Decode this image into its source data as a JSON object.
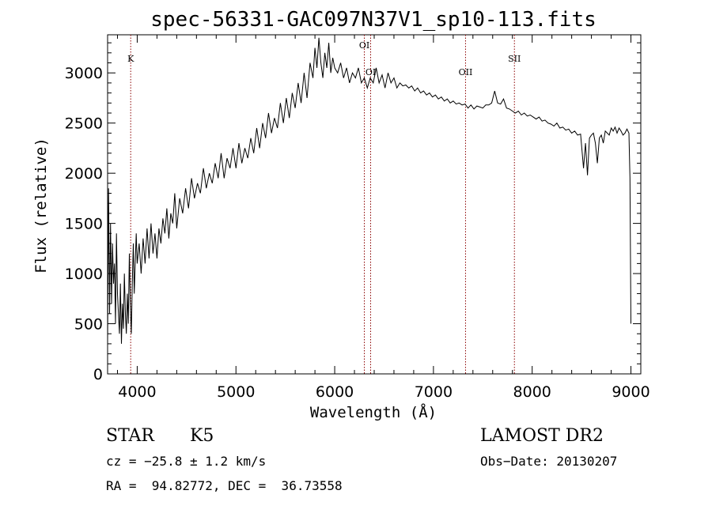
{
  "chart_data": {
    "type": "line",
    "title": "spec-56331-GAC097N37V1_sp10-113.fits",
    "xlabel": "Wavelength (Å)",
    "ylabel": "Flux (relative)",
    "xlim": [
      3700,
      9100
    ],
    "ylim": [
      0,
      3380
    ],
    "x_ticks": [
      4000,
      5000,
      6000,
      7000,
      8000,
      9000
    ],
    "y_ticks": [
      0,
      500,
      1000,
      1500,
      2000,
      2500,
      3000
    ],
    "grid": false,
    "line_color": "#000000",
    "marker_color": "#8b0000",
    "spectral_lines": [
      {
        "label": "K",
        "wavelength": 3934
      },
      {
        "label": "OI",
        "wavelength": 6300
      },
      {
        "label": "OI",
        "wavelength": 6364
      },
      {
        "label": "OII",
        "wavelength": 7325
      },
      {
        "label": "SII",
        "wavelength": 7820
      }
    ],
    "series": [
      {
        "x": [
          3700,
          3710,
          3720,
          3730,
          3740,
          3750,
          3760,
          3770,
          3780,
          3790,
          3800,
          3810,
          3820,
          3830,
          3840,
          3850,
          3860,
          3870,
          3880,
          3890,
          3900,
          3910,
          3920,
          3930,
          3940,
          3950,
          3960,
          3970,
          3980,
          3990,
          4000,
          4020,
          4040,
          4060,
          4080,
          4100,
          4120,
          4140,
          4160,
          4180,
          4200,
          4220,
          4240,
          4260,
          4280,
          4300,
          4320,
          4340,
          4360,
          4380,
          4400,
          4430,
          4460,
          4490,
          4520,
          4550,
          4580,
          4610,
          4640,
          4670,
          4700,
          4730,
          4760,
          4790,
          4820,
          4850,
          4880,
          4910,
          4940,
          4970,
          5000,
          5030,
          5060,
          5090,
          5120,
          5150,
          5180,
          5210,
          5240,
          5270,
          5300,
          5330,
          5360,
          5390,
          5420,
          5450,
          5480,
          5510,
          5540,
          5570,
          5600,
          5630,
          5660,
          5690,
          5720,
          5750,
          5780,
          5800,
          5820,
          5840,
          5860,
          5880,
          5900,
          5920,
          5940,
          5960,
          5980,
          6000,
          6030,
          6060,
          6090,
          6120,
          6150,
          6180,
          6210,
          6240,
          6270,
          6300,
          6330,
          6360,
          6390,
          6420,
          6450,
          6480,
          6510,
          6540,
          6570,
          6600,
          6630,
          6660,
          6690,
          6720,
          6750,
          6780,
          6810,
          6840,
          6870,
          6900,
          6930,
          6960,
          6990,
          7020,
          7050,
          7080,
          7110,
          7140,
          7170,
          7200,
          7230,
          7260,
          7290,
          7320,
          7350,
          7380,
          7410,
          7440,
          7470,
          7500,
          7530,
          7560,
          7590,
          7620,
          7650,
          7680,
          7710,
          7740,
          7770,
          7800,
          7830,
          7860,
          7890,
          7920,
          7950,
          7980,
          8010,
          8040,
          8070,
          8100,
          8130,
          8160,
          8190,
          8220,
          8250,
          8280,
          8310,
          8340,
          8370,
          8400,
          8430,
          8460,
          8490,
          8520,
          8540,
          8560,
          8580,
          8600,
          8620,
          8640,
          8660,
          8680,
          8700,
          8720,
          8740,
          8760,
          8780,
          8800,
          8820,
          8840,
          8860,
          8880,
          8900,
          8920,
          8940,
          8960,
          8980,
          8990,
          9000
        ],
        "y": [
          300,
          1850,
          600,
          1500,
          700,
          1300,
          900,
          1100,
          500,
          1400,
          800,
          600,
          400,
          900,
          300,
          700,
          450,
          1000,
          600,
          400,
          800,
          500,
          1200,
          700,
          400,
          900,
          1300,
          800,
          1100,
          1400,
          1100,
          1300,
          1000,
          1350,
          1100,
          1450,
          1150,
          1500,
          1200,
          1400,
          1150,
          1450,
          1300,
          1550,
          1400,
          1650,
          1350,
          1600,
          1500,
          1800,
          1450,
          1750,
          1600,
          1850,
          1650,
          1950,
          1750,
          1900,
          1800,
          2050,
          1850,
          2000,
          1900,
          2100,
          1950,
          2200,
          1950,
          2150,
          2050,
          2250,
          2050,
          2300,
          2100,
          2250,
          2150,
          2350,
          2200,
          2450,
          2250,
          2500,
          2350,
          2600,
          2400,
          2550,
          2450,
          2700,
          2500,
          2750,
          2550,
          2800,
          2650,
          2900,
          2700,
          3000,
          2750,
          3100,
          2950,
          3250,
          3050,
          3350,
          3100,
          2950,
          3200,
          3050,
          3300,
          3000,
          3150,
          3050,
          3000,
          3100,
          2950,
          3050,
          2900,
          3000,
          2950,
          3050,
          2900,
          2950,
          2850,
          2950,
          2900,
          3050,
          2900,
          2980,
          2850,
          3000,
          2900,
          2950,
          2850,
          2900,
          2870,
          2880,
          2850,
          2870,
          2820,
          2850,
          2800,
          2820,
          2780,
          2800,
          2760,
          2780,
          2740,
          2760,
          2720,
          2740,
          2700,
          2720,
          2690,
          2700,
          2680,
          2690,
          2650,
          2680,
          2640,
          2670,
          2660,
          2650,
          2680,
          2680,
          2700,
          2820,
          2700,
          2690,
          2740,
          2650,
          2640,
          2620,
          2600,
          2620,
          2580,
          2600,
          2570,
          2580,
          2560,
          2540,
          2560,
          2520,
          2530,
          2500,
          2490,
          2470,
          2500,
          2450,
          2460,
          2430,
          2440,
          2400,
          2420,
          2380,
          2390,
          2050,
          2300,
          1980,
          2350,
          2380,
          2400,
          2300,
          2100,
          2350,
          2380,
          2300,
          2420,
          2400,
          2380,
          2450,
          2420,
          2460,
          2400,
          2450,
          2420,
          2380,
          2400,
          2440,
          2400,
          1950,
          500
        ]
      }
    ],
    "info": {
      "object_class": "STAR",
      "subclass": "K5",
      "survey": "LAMOST DR2",
      "cz": "cz = −25.8 ± 1.2 km/s",
      "obs_date": "Obs−Date: 20130207",
      "radec": "RA =  94.82772, DEC =  36.73558"
    }
  }
}
